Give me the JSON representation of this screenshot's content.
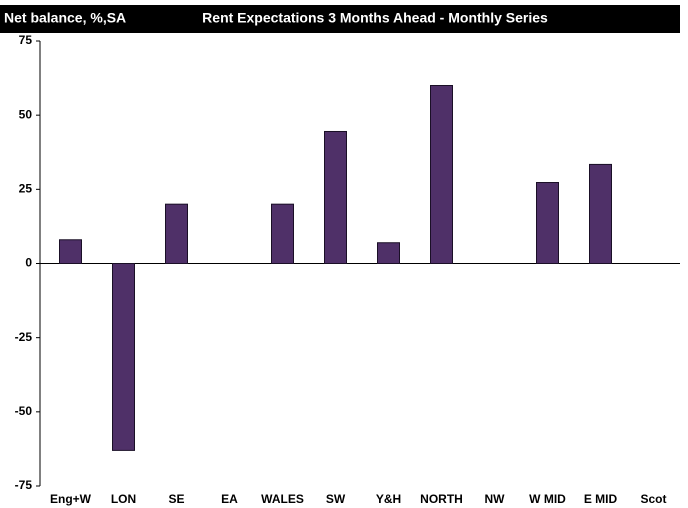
{
  "chart_data": {
    "type": "bar",
    "title": "Rent Expectations 3 Months Ahead - Monthly Series",
    "y_label": "Net balance, %,SA",
    "categories": [
      "Eng+W",
      "LON",
      "SE",
      "EA",
      "WALES",
      "SW",
      "Y&H",
      "NORTH",
      "NW",
      "W MID",
      "E MID",
      "Scot"
    ],
    "values": [
      8,
      -63,
      20,
      0,
      20,
      44.5,
      7,
      60,
      0,
      27.3,
      33.4,
      0
    ],
    "color": "#4f3068",
    "ylim": [
      -75,
      75
    ],
    "yticks": [
      -75,
      -50,
      -25,
      0,
      25,
      50,
      75
    ],
    "grid": false
  }
}
